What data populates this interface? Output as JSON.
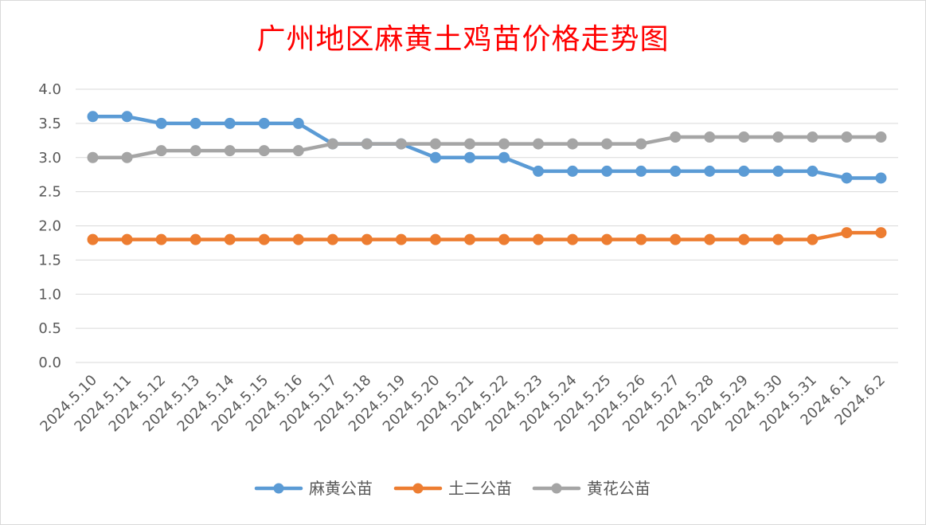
{
  "chart_data": {
    "type": "line",
    "title": "广州地区麻黄土鸡苗价格走势图",
    "categories": [
      "2024.5.10",
      "2024.5.11",
      "2024.5.12",
      "2024.5.13",
      "2024.5.14",
      "2024.5.15",
      "2024.5.16",
      "2024.5.17",
      "2024.5.18",
      "2024.5.19",
      "2024.5.20",
      "2024.5.21",
      "2024.5.22",
      "2024.5.23",
      "2024.5.24",
      "2024.5.25",
      "2024.5.26",
      "2024.5.27",
      "2024.5.28",
      "2024.5.29",
      "2024.5.30",
      "2024.5.31",
      "2024.6.1",
      "2024.6.2"
    ],
    "yticks": [
      "0.0",
      "0.5",
      "1.0",
      "1.5",
      "2.0",
      "2.5",
      "3.0",
      "3.5",
      "4.0"
    ],
    "ylim": [
      0,
      4
    ],
    "grid": true,
    "legend_position": "bottom",
    "series": [
      {
        "name": "麻黄公苗",
        "color": "#5b9bd5",
        "values": [
          3.6,
          3.6,
          3.5,
          3.5,
          3.5,
          3.5,
          3.5,
          3.2,
          3.2,
          3.2,
          3.0,
          3.0,
          3.0,
          2.8,
          2.8,
          2.8,
          2.8,
          2.8,
          2.8,
          2.8,
          2.8,
          2.8,
          2.7,
          2.7
        ]
      },
      {
        "name": "土二公苗",
        "color": "#ed7d31",
        "values": [
          1.8,
          1.8,
          1.8,
          1.8,
          1.8,
          1.8,
          1.8,
          1.8,
          1.8,
          1.8,
          1.8,
          1.8,
          1.8,
          1.8,
          1.8,
          1.8,
          1.8,
          1.8,
          1.8,
          1.8,
          1.8,
          1.8,
          1.9,
          1.9
        ]
      },
      {
        "name": "黄花公苗",
        "color": "#a5a5a5",
        "values": [
          3.0,
          3.0,
          3.1,
          3.1,
          3.1,
          3.1,
          3.1,
          3.2,
          3.2,
          3.2,
          3.2,
          3.2,
          3.2,
          3.2,
          3.2,
          3.2,
          3.2,
          3.3,
          3.3,
          3.3,
          3.3,
          3.3,
          3.3,
          3.3
        ]
      }
    ]
  }
}
